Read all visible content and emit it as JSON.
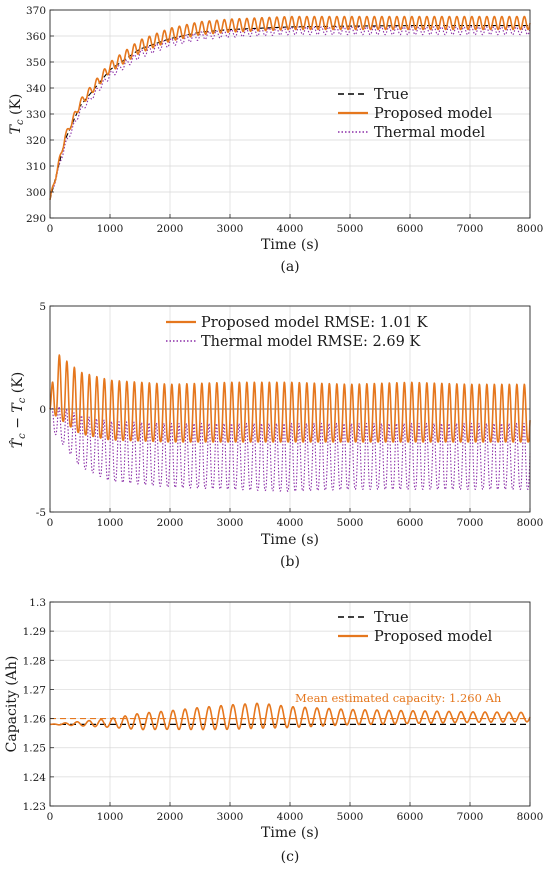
{
  "colors": {
    "true": "#000000",
    "proposed": "#e5771e",
    "thermal": "#8b2fa8",
    "grid": "#d9d9d9",
    "axis": "#262626"
  },
  "chart_data": [
    {
      "type": "line",
      "caption": "(a)",
      "xlabel": "Time (s)",
      "ylabel": "T_c (K)",
      "xlim": [
        0,
        8000
      ],
      "ylim": [
        290,
        370
      ],
      "xticks": [
        0,
        1000,
        2000,
        3000,
        4000,
        5000,
        6000,
        7000,
        8000
      ],
      "yticks": [
        290,
        300,
        310,
        320,
        330,
        340,
        350,
        360,
        370
      ],
      "grid": true,
      "legend": "right",
      "legend_entries": [
        "True",
        "Proposed model",
        "Thermal model"
      ],
      "series": [
        {
          "name": "True",
          "style": "dashed",
          "x": [
            0,
            250,
            500,
            1000,
            1500,
            2000,
            2500,
            3000,
            4000,
            5000,
            6000,
            7000,
            8000
          ],
          "values": [
            297,
            320,
            333,
            347,
            355,
            359,
            361.5,
            362.5,
            363.5,
            363.8,
            364,
            364,
            364
          ]
        },
        {
          "name": "Proposed model",
          "style": "solid",
          "x": [
            0,
            250,
            500,
            1000,
            1500,
            2000,
            2500,
            3000,
            4000,
            5000,
            6000,
            7000,
            8000
          ],
          "values": [
            297,
            321,
            334,
            348,
            356,
            360.5,
            363,
            364,
            365,
            365,
            365,
            365,
            365
          ],
          "oscillation_amplitude": 2.5
        },
        {
          "name": "Thermal model",
          "style": "dotted",
          "x": [
            0,
            250,
            500,
            1000,
            1500,
            2000,
            2500,
            3000,
            4000,
            5000,
            6000,
            7000,
            8000
          ],
          "values": [
            297,
            318,
            331,
            345,
            353,
            357.5,
            360,
            361,
            362,
            362,
            362,
            362,
            362
          ],
          "oscillation_amplitude": 1.5
        }
      ]
    },
    {
      "type": "line",
      "caption": "(b)",
      "xlabel": "Time (s)",
      "ylabel": "T̂_c − T_c (K)",
      "xlim": [
        0,
        8000
      ],
      "ylim": [
        -5,
        5
      ],
      "xticks": [
        0,
        1000,
        2000,
        3000,
        4000,
        5000,
        6000,
        7000,
        8000
      ],
      "yticks": [
        -5,
        0,
        5
      ],
      "grid": true,
      "legend": "top",
      "legend_entries": [
        "Proposed model RMSE: 1.01 K",
        "Thermal model RMSE: 2.69 K"
      ],
      "series": [
        {
          "name": "Proposed model RMSE: 1.01 K",
          "style": "solid",
          "x": [
            0,
            80,
            500,
            1000,
            2000,
            3000,
            4000,
            5000,
            6000,
            7000,
            8000
          ],
          "upper": [
            0,
            2.8,
            1.8,
            1.4,
            1.2,
            1.3,
            1.3,
            1.2,
            1.3,
            1.2,
            1.2
          ],
          "lower": [
            0,
            -0.3,
            -1.2,
            -1.5,
            -1.6,
            -1.6,
            -1.6,
            -1.6,
            -1.6,
            -1.6,
            -1.6
          ]
        },
        {
          "name": "Thermal model RMSE: 2.69 K",
          "style": "dotted",
          "x": [
            0,
            80,
            500,
            1000,
            2000,
            3000,
            4000,
            5000,
            6000,
            7000,
            8000
          ],
          "upper": [
            0,
            0.2,
            -0.3,
            -0.6,
            -0.7,
            -0.7,
            -0.7,
            -0.7,
            -0.7,
            -0.7,
            -0.7
          ],
          "lower": [
            0,
            -1.2,
            -2.8,
            -3.5,
            -3.8,
            -3.9,
            -4.0,
            -3.9,
            -3.9,
            -3.9,
            -3.9
          ]
        }
      ]
    },
    {
      "type": "line",
      "caption": "(c)",
      "xlabel": "Time (s)",
      "ylabel": "Capacity (Ah)",
      "xlim": [
        0,
        8000
      ],
      "ylim": [
        1.23,
        1.3
      ],
      "xticks": [
        0,
        1000,
        2000,
        3000,
        4000,
        5000,
        6000,
        7000,
        8000
      ],
      "yticks": [
        1.23,
        1.24,
        1.25,
        1.26,
        1.27,
        1.28,
        1.29,
        1.3
      ],
      "grid": true,
      "legend": "top-right",
      "legend_entries": [
        "True",
        "Proposed model"
      ],
      "annotation": "Mean estimated capacity: 1.260 Ah",
      "mean_estimated_capacity": 1.26,
      "series": [
        {
          "name": "True",
          "style": "dashed",
          "x": [
            0,
            8000
          ],
          "values": [
            1.258,
            1.258
          ]
        },
        {
          "name": "Proposed model",
          "style": "solid",
          "x": [
            0,
            1000,
            1500,
            2000,
            2500,
            3000,
            3500,
            4000,
            5000,
            6000,
            7000,
            8000
          ],
          "center": [
            1.258,
            1.2585,
            1.259,
            1.2595,
            1.26,
            1.2605,
            1.261,
            1.2605,
            1.2605,
            1.2605,
            1.2605,
            1.2605
          ],
          "amplitude": [
            0,
            0.0015,
            0.0028,
            0.0032,
            0.0038,
            0.0042,
            0.0043,
            0.0036,
            0.0026,
            0.0022,
            0.0018,
            0.0016
          ]
        }
      ]
    }
  ]
}
